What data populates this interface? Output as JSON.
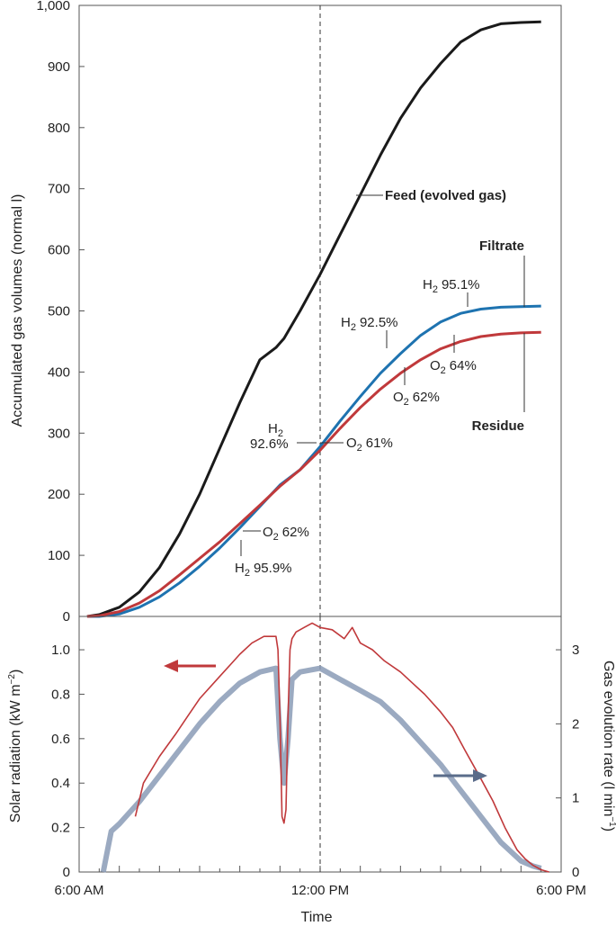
{
  "chart_data": [
    {
      "type": "line",
      "ylabel": "Accumulated gas volumes (normal l)",
      "xlim": [
        6,
        18
      ],
      "ylim": [
        0,
        1000
      ],
      "y_ticks": [
        "0",
        "100",
        "200",
        "300",
        "400",
        "500",
        "600",
        "700",
        "800",
        "900",
        "1,000"
      ],
      "y_tick_values": [
        0,
        100,
        200,
        300,
        400,
        500,
        600,
        700,
        800,
        900,
        1000
      ],
      "vline_x": 12,
      "series": [
        {
          "name": "Feed (evolved gas)",
          "color": "#1a1a1a",
          "x": [
            6.2,
            6.5,
            7.0,
            7.5,
            8.0,
            8.5,
            9.0,
            9.5,
            10.0,
            10.5,
            10.9,
            11.1,
            11.5,
            12.0,
            12.5,
            13.0,
            13.5,
            14.0,
            14.5,
            15.0,
            15.5,
            16.0,
            16.5,
            17.0,
            17.5
          ],
          "y": [
            0,
            3,
            15,
            40,
            80,
            135,
            200,
            275,
            350,
            420,
            440,
            455,
            500,
            560,
            625,
            690,
            755,
            815,
            865,
            905,
            940,
            960,
            970,
            972,
            973
          ]
        },
        {
          "name": "Filtrate",
          "color": "#1e73b0",
          "x": [
            6.2,
            6.5,
            7.0,
            7.5,
            8.0,
            8.5,
            9.0,
            9.5,
            10.0,
            10.5,
            11.0,
            11.5,
            12.0,
            12.5,
            13.0,
            13.5,
            14.0,
            14.5,
            15.0,
            15.5,
            16.0,
            16.5,
            17.0,
            17.5
          ],
          "y": [
            0,
            0,
            4,
            15,
            32,
            55,
            82,
            112,
            145,
            180,
            215,
            240,
            278,
            320,
            360,
            398,
            430,
            460,
            482,
            496,
            503,
            506,
            507,
            508
          ]
        },
        {
          "name": "Residue",
          "color": "#c0393b",
          "x": [
            6.2,
            6.5,
            7.0,
            7.5,
            8.0,
            8.5,
            9.0,
            9.5,
            10.0,
            10.5,
            11.0,
            11.5,
            12.0,
            12.5,
            13.0,
            13.5,
            14.0,
            14.5,
            15.0,
            15.5,
            16.0,
            16.5,
            17.0,
            17.5
          ],
          "y": [
            0,
            1,
            8,
            22,
            42,
            68,
            95,
            122,
            152,
            182,
            213,
            240,
            272,
            308,
            342,
            372,
            398,
            420,
            438,
            450,
            458,
            462,
            464,
            465
          ]
        }
      ],
      "labels": {
        "feed": "Feed (evolved gas)",
        "filtrate": "Filtrate",
        "residue": "Residue"
      },
      "annotations": [
        {
          "gas": "H",
          "sub": "2",
          "value": "95.1%"
        },
        {
          "gas": "H",
          "sub": "2",
          "value": "92.5%"
        },
        {
          "gas": "O",
          "sub": "2",
          "value": "64%"
        },
        {
          "gas": "O",
          "sub": "2",
          "value": "62%"
        },
        {
          "gas": "H",
          "sub": "2",
          "value": "92.6%"
        },
        {
          "gas": "O",
          "sub": "2",
          "value": "61%"
        },
        {
          "gas": "O",
          "sub": "2",
          "value": "62%"
        },
        {
          "gas": "H",
          "sub": "2",
          "value": "95.9%"
        }
      ]
    },
    {
      "type": "line",
      "xlabel": "Time",
      "ylabel": "Solar radiation (kW m",
      "ylabel_sup": "−2",
      "ylabel_end": ")",
      "y2label": "Gas evolution rate (l min",
      "y2label_sup": "−1",
      "y2label_end": ")",
      "xlim": [
        6,
        18
      ],
      "ylim": [
        0,
        1.15
      ],
      "y2lim": [
        0,
        3.45
      ],
      "x_ticks": [
        "6:00 AM",
        "12:00 PM",
        "6:00 PM"
      ],
      "x_tick_values": [
        6,
        12,
        18
      ],
      "y_ticks": [
        "0",
        "0.2",
        "0.4",
        "0.6",
        "0.8",
        "1.0"
      ],
      "y_tick_values": [
        0,
        0.2,
        0.4,
        0.6,
        0.8,
        1.0
      ],
      "y2_ticks": [
        "0",
        "1",
        "2",
        "3"
      ],
      "y2_tick_values": [
        0,
        1,
        2,
        3
      ],
      "vline_x": 12,
      "series": [
        {
          "axis": "left",
          "color": "#c0393b",
          "x": [
            7.4,
            7.6,
            8.0,
            8.4,
            8.7,
            9.0,
            9.5,
            10.0,
            10.3,
            10.6,
            10.9,
            10.95,
            11.0,
            11.05,
            11.1,
            11.15,
            11.2,
            11.25,
            11.3,
            11.4,
            11.6,
            11.8,
            12.0,
            12.3,
            12.6,
            12.8,
            13.0,
            13.3,
            13.6,
            14.0,
            14.3,
            14.6,
            15.0,
            15.3,
            15.6,
            16.0,
            16.3,
            16.6,
            16.9,
            17.1,
            17.3,
            17.5,
            17.7
          ],
          "y": [
            0.25,
            0.4,
            0.52,
            0.62,
            0.7,
            0.78,
            0.88,
            0.98,
            1.03,
            1.06,
            1.06,
            1.0,
            0.7,
            0.25,
            0.22,
            0.28,
            0.7,
            1.0,
            1.05,
            1.08,
            1.1,
            1.12,
            1.1,
            1.09,
            1.05,
            1.1,
            1.03,
            1.0,
            0.95,
            0.9,
            0.85,
            0.8,
            0.72,
            0.65,
            0.55,
            0.42,
            0.32,
            0.2,
            0.1,
            0.06,
            0.03,
            0.01,
            0.0
          ]
        },
        {
          "axis": "right",
          "color": "#8a9bb6",
          "x": [
            6.6,
            6.8,
            7.0,
            7.5,
            8.0,
            8.5,
            9.0,
            9.5,
            10.0,
            10.5,
            10.9,
            11.0,
            11.1,
            11.2,
            11.3,
            11.5,
            12.0,
            12.5,
            13.0,
            13.5,
            14.0,
            14.5,
            15.0,
            15.5,
            16.0,
            16.5,
            17.0,
            17.3,
            17.5
          ],
          "y": [
            0.0,
            0.55,
            0.65,
            0.95,
            1.3,
            1.65,
            2.0,
            2.3,
            2.55,
            2.7,
            2.75,
            1.8,
            1.2,
            1.8,
            2.6,
            2.7,
            2.75,
            2.6,
            2.45,
            2.3,
            2.05,
            1.75,
            1.45,
            1.1,
            0.75,
            0.4,
            0.15,
            0.08,
            0.05
          ]
        }
      ]
    }
  ]
}
